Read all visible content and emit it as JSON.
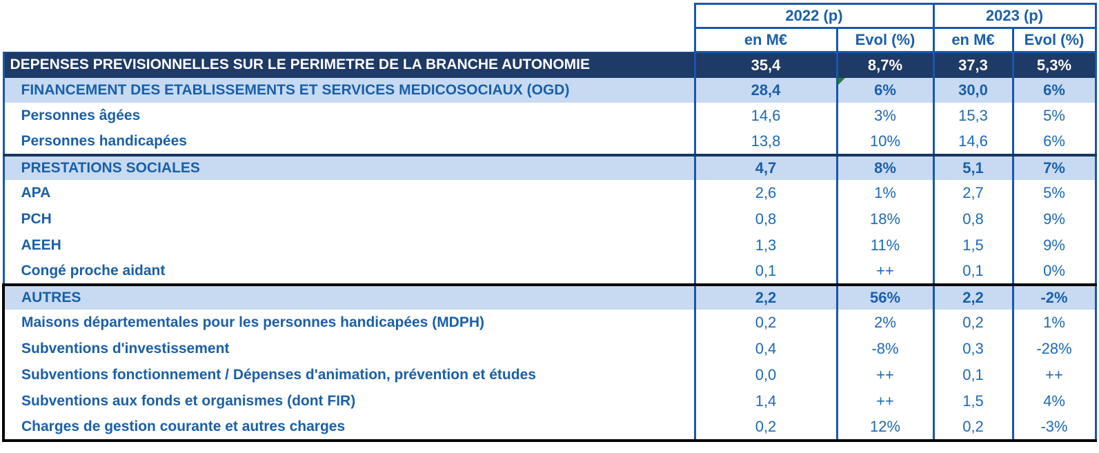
{
  "header": {
    "year_groups": [
      {
        "label": "2022 (p)"
      },
      {
        "label": "2023 (p)"
      }
    ],
    "sub_columns": [
      "en M€",
      "Evol (%)",
      "en M€",
      "Evol (%)"
    ]
  },
  "colors": {
    "total_row_bg": "#1e3a66",
    "section_row_bg": "#c7daf1",
    "grid_border_blue": "#1857a8",
    "label_text_blue": "#1a5fa8",
    "value_text_blue": "#1c69b5",
    "navy_separator": "#17375e",
    "black_separator": "#000000",
    "comment_marker_green": "#2e7d32",
    "total_row_text": "#ffffff"
  },
  "table": {
    "rows": [
      {
        "label": "DEPENSES PREVISIONNELLES SUR LE PERIMETRE DE LA BRANCHE AUTONOMIE",
        "values": [
          "35,4",
          "8,7%",
          "37,3",
          "5,3%"
        ],
        "style": "total"
      },
      {
        "label": "FINANCEMENT DES ETABLISSEMENTS ET SERVICES MEDICOSOCIAUX (OGD)",
        "values": [
          "28,4",
          "6%",
          "30,0",
          "6%"
        ],
        "style": "section",
        "note_marker": true
      },
      {
        "label": "Personnes âgées",
        "values": [
          "14,6",
          "3%",
          "15,3",
          "5%"
        ],
        "style": "item"
      },
      {
        "label": "Personnes handicapées",
        "values": [
          "13,8",
          "10%",
          "14,6",
          "6%"
        ],
        "style": "item"
      },
      {
        "label": "PRESTATIONS SOCIALES",
        "values": [
          "4,7",
          "8%",
          "5,1",
          "7%"
        ],
        "style": "section",
        "separator": "navy"
      },
      {
        "label": "APA",
        "values": [
          "2,6",
          "1%",
          "2,7",
          "5%"
        ],
        "style": "item"
      },
      {
        "label": "PCH",
        "values": [
          "0,8",
          "18%",
          "0,8",
          "9%"
        ],
        "style": "item"
      },
      {
        "label": "AEEH",
        "values": [
          "1,3",
          "11%",
          "1,5",
          "9%"
        ],
        "style": "item"
      },
      {
        "label": "Congé proche aidant",
        "values": [
          "0,1",
          "++",
          "0,1",
          "0%"
        ],
        "style": "item"
      },
      {
        "label": "AUTRES",
        "values": [
          "2,2",
          "56%",
          "2,2",
          "-2%"
        ],
        "style": "section",
        "separator": "black",
        "black_left": true
      },
      {
        "label": "Maisons départementales pour les personnes handicapées (MDPH)",
        "values": [
          "0,2",
          "2%",
          "0,2",
          "1%"
        ],
        "style": "item",
        "black_left": true
      },
      {
        "label": "Subventions d'investissement",
        "values": [
          "0,4",
          "-8%",
          "0,3",
          "-28%"
        ],
        "style": "item",
        "black_left": true
      },
      {
        "label": "Subventions fonctionnement / Dépenses d'animation, prévention et études",
        "values": [
          "0,0",
          "++",
          "0,1",
          "++"
        ],
        "style": "item",
        "black_left": true
      },
      {
        "label": "Subventions aux fonds et organismes (dont FIR)",
        "values": [
          "1,4",
          "++",
          "1,5",
          "4%"
        ],
        "style": "item",
        "black_left": true
      },
      {
        "label": "Charges de gestion courante et autres charges",
        "values": [
          "0,2",
          "12%",
          "0,2",
          "-3%"
        ],
        "style": "item",
        "black_left": true
      }
    ]
  }
}
